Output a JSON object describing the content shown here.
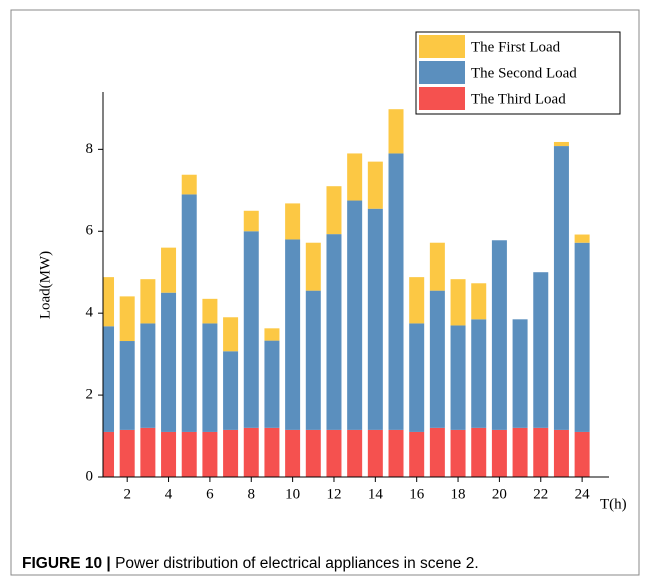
{
  "chart_data": {
    "type": "stacked_bar",
    "y_label": "Load(MW)",
    "x_label": "T(h)",
    "caption_label": "FIGURE 10 |",
    "caption_text": "Power distribution of electrical appliances in scene 2.",
    "x": [
      1,
      2,
      3,
      4,
      5,
      6,
      7,
      8,
      9,
      10,
      11,
      12,
      13,
      14,
      15,
      16,
      17,
      18,
      19,
      20,
      21,
      22,
      23,
      24
    ],
    "series": [
      {
        "name": "The First Load",
        "color": "#fcc844",
        "values": [
          1.2,
          1.09,
          1.08,
          1.1,
          0.48,
          0.6,
          0.83,
          0.5,
          0.3,
          0.88,
          1.17,
          1.17,
          1.15,
          1.15,
          1.08,
          1.13,
          1.17,
          1.13,
          0.88,
          0,
          0,
          0,
          0.1,
          0.2
        ]
      },
      {
        "name": "The Second Load",
        "color": "#5b8fbe",
        "values": [
          2.58,
          2.17,
          2.55,
          3.4,
          5.8,
          2.65,
          1.92,
          4.8,
          2.13,
          4.65,
          3.4,
          4.78,
          5.6,
          5.4,
          6.75,
          2.65,
          3.35,
          2.55,
          2.65,
          4.63,
          2.65,
          3.8,
          6.93,
          4.62
        ]
      },
      {
        "name": "The Third Load",
        "color": "#f5514f",
        "values": [
          1.1,
          1.15,
          1.2,
          1.1,
          1.1,
          1.1,
          1.15,
          1.2,
          1.2,
          1.15,
          1.15,
          1.15,
          1.15,
          1.15,
          1.15,
          1.1,
          1.2,
          1.15,
          1.2,
          1.15,
          1.2,
          1.2,
          1.15,
          1.1
        ]
      }
    ],
    "xlim": [
      0.83,
      25.3
    ],
    "xticks": [
      2,
      4,
      6,
      8,
      10,
      12,
      14,
      16,
      18,
      20,
      22,
      24
    ],
    "ylim": [
      0,
      9.4
    ],
    "yticks": [
      0,
      2,
      4,
      6,
      8
    ]
  }
}
